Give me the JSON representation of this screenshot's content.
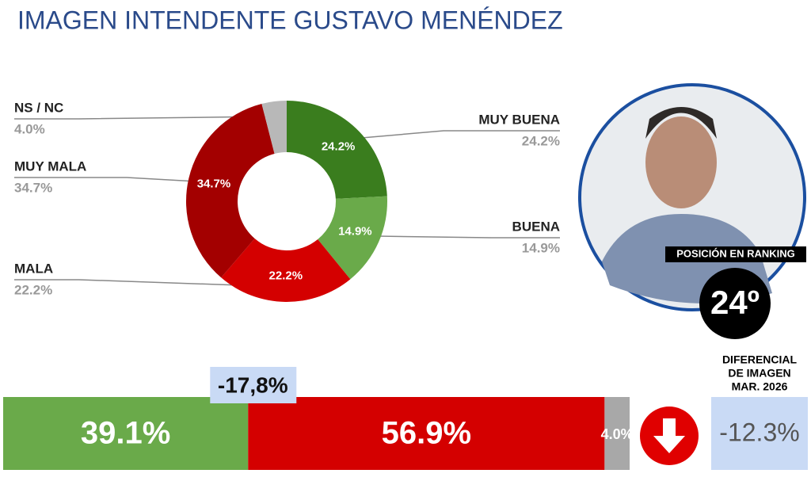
{
  "title": "IMAGEN INTENDENTE  GUSTAVO MENÉNDEZ",
  "chart_data": [
    {
      "type": "donut",
      "categories": [
        "MUY BUENA",
        "BUENA",
        "MALA",
        "MUY MALA",
        "NS / NC"
      ],
      "values": [
        24.2,
        14.9,
        22.2,
        34.7,
        4.0
      ],
      "value_labels": [
        "24.2%",
        "14.9%",
        "22.2%",
        "34.7%",
        "4.0%"
      ],
      "colors": [
        "#3a7d1e",
        "#6aaa4a",
        "#d40000",
        "#a30000",
        "#b8b8b8"
      ]
    },
    {
      "type": "stacked-bar",
      "values": [
        39.1,
        56.9,
        4.0
      ],
      "value_labels": [
        "39.1%",
        "56.9%",
        "4.0%"
      ],
      "colors": [
        "#6aaa4a",
        "#d40000",
        "#a8a8a8"
      ],
      "difference": {
        "value": -17.8,
        "label": "-17,8%"
      }
    }
  ],
  "ranking": {
    "label": "POSICIÓN EN RANKING",
    "position": "24º"
  },
  "differential": {
    "lines": [
      "DIFERENCIAL",
      "DE IMAGEN",
      "MAR. 2026"
    ],
    "value": {
      "value": -12.3,
      "label": "-12.3%"
    }
  }
}
